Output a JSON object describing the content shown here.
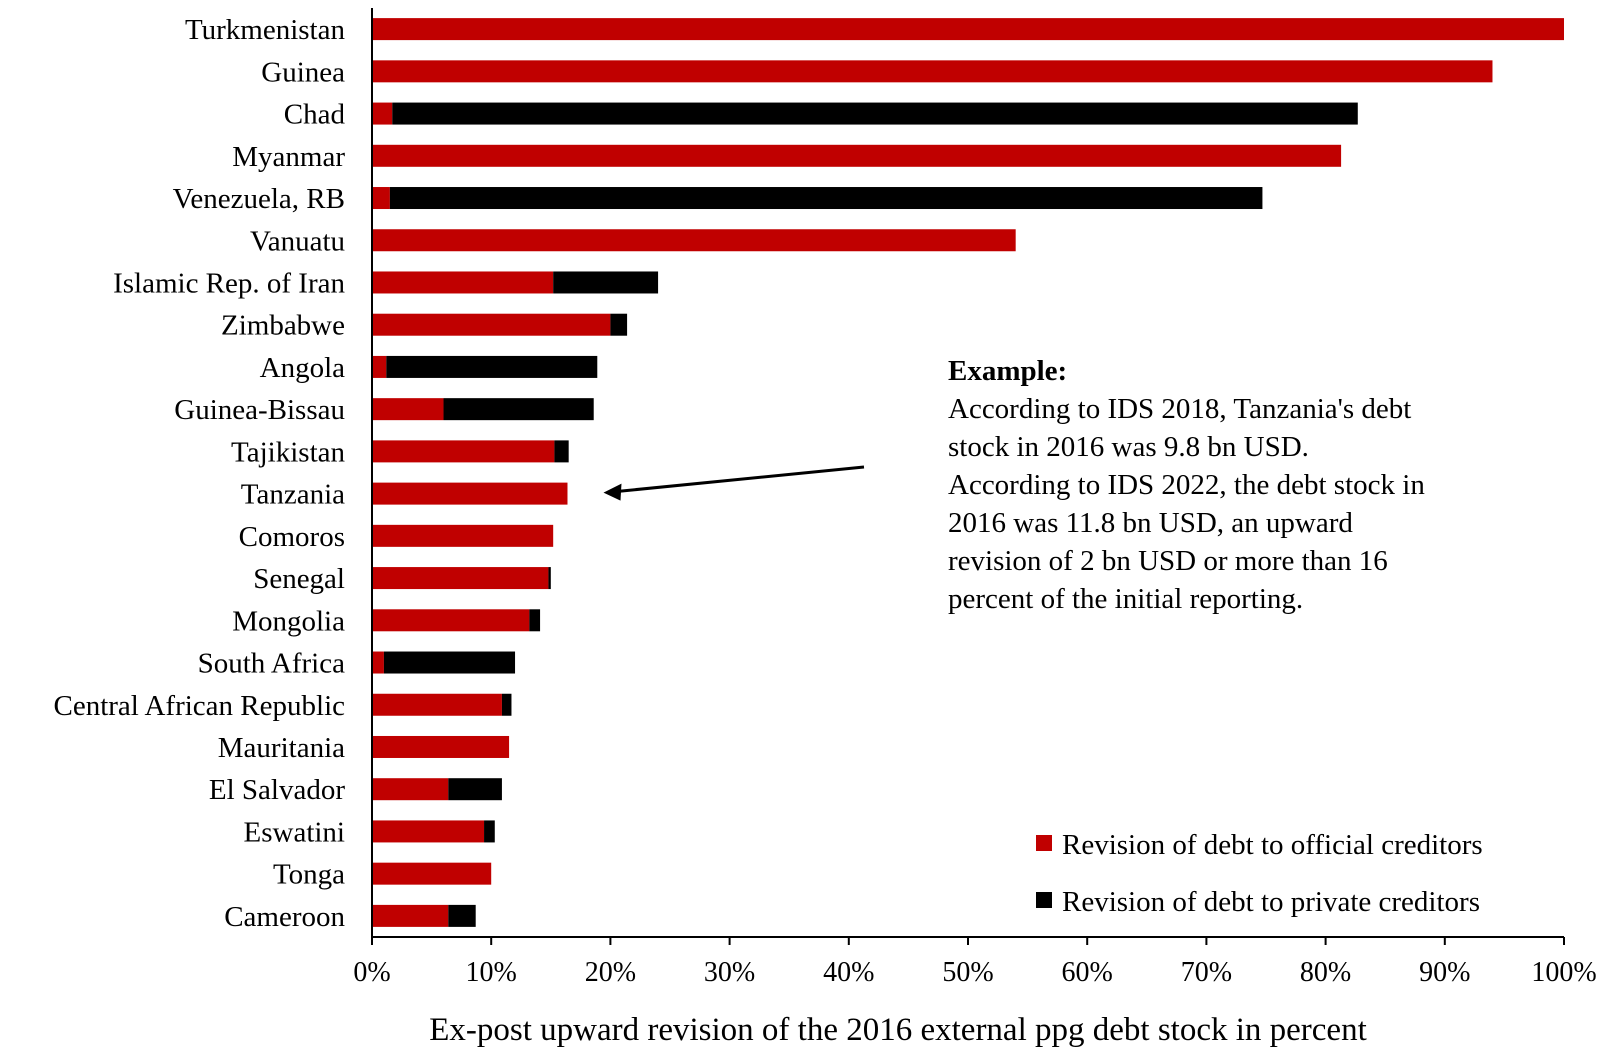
{
  "chart_data": {
    "type": "bar",
    "orientation": "horizontal",
    "stacked": true,
    "categories": [
      "Turkmenistan",
      "Guinea",
      "Chad",
      "Myanmar",
      "Venezuela, RB",
      "Vanuatu",
      "Islamic Rep. of Iran",
      "Zimbabwe",
      "Angola",
      "Guinea-Bissau",
      "Tajikistan",
      "Tanzania",
      "Comoros",
      "Senegal",
      "Mongolia",
      "South Africa",
      "Central African Republic",
      "Mauritania",
      "El Salvador",
      "Eswatini",
      "Tonga",
      "Cameroon"
    ],
    "series": [
      {
        "name": "Revision of debt to official creditors",
        "color": "#c00000",
        "values": [
          100,
          94,
          1.7,
          81.3,
          1.5,
          54,
          15.2,
          20,
          1.2,
          6,
          15.3,
          16.4,
          15.2,
          14.8,
          13.2,
          1,
          10.9,
          11.5,
          6.4,
          9.4,
          10,
          6.4
        ]
      },
      {
        "name": "Revision of debt to private creditors",
        "color": "#000000",
        "values": [
          0,
          0,
          81,
          0,
          73.2,
          0,
          8.8,
          1.4,
          17.7,
          12.6,
          1.2,
          0,
          0,
          0.2,
          0.9,
          11,
          0.8,
          0,
          4.5,
          0.9,
          0,
          2.3
        ]
      }
    ],
    "xlim": [
      0,
      100
    ],
    "xticks": [
      "0%",
      "10%",
      "20%",
      "30%",
      "40%",
      "50%",
      "60%",
      "70%",
      "80%",
      "90%",
      "100%"
    ],
    "xlabel": "Ex-post upward revision of the 2016 external ppg debt stock in percent",
    "ylabel": "",
    "legend_position": "bottom-right",
    "annotation": {
      "title": "Example:",
      "lines": [
        "According to IDS 2018, Tanzania's debt",
        "stock in 2016 was 9.8 bn USD.",
        "According to IDS 2022, the debt stock in",
        "2016 was 11.8 bn USD, an upward",
        "revision of 2 bn USD or more than 16",
        "percent of the initial reporting."
      ],
      "points_to": "Tanzania"
    }
  }
}
